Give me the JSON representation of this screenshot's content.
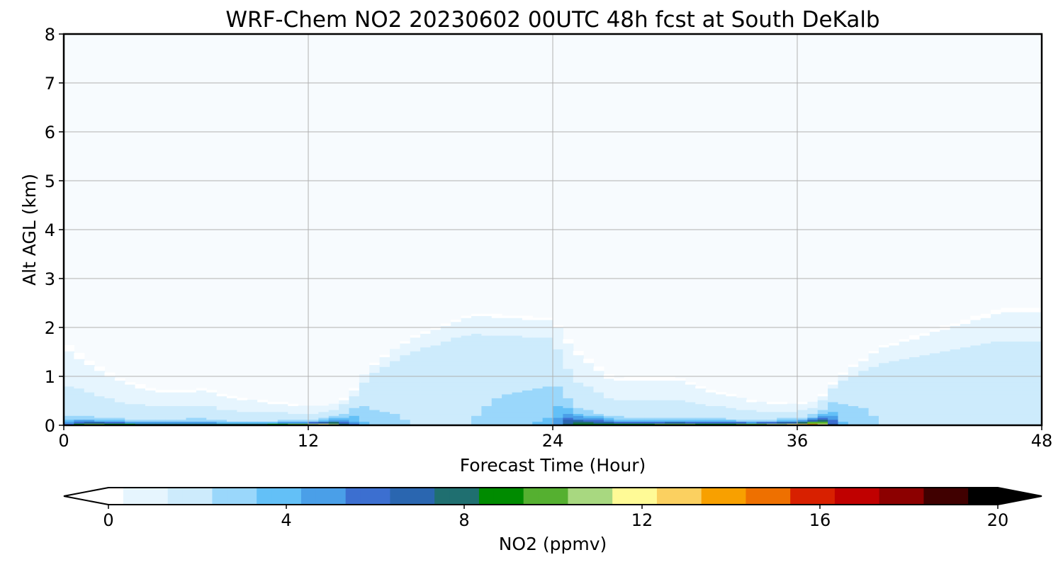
{
  "chart_data": {
    "type": "heatmap",
    "title": "WRF-Chem NO2  20230602 00UTC 48h fcst at South DeKalb",
    "xlabel": "Forecast Time (Hour)",
    "ylabel": "Alt AGL (km)",
    "xlim": [
      0,
      48
    ],
    "ylim": [
      0,
      8
    ],
    "x_ticks": [
      0,
      12,
      24,
      36,
      48
    ],
    "y_ticks": [
      0,
      1,
      2,
      3,
      4,
      5,
      6,
      7,
      8
    ],
    "grid": true,
    "colorbar": {
      "label": "NO2  (ppmv)",
      "range": [
        0,
        20
      ],
      "ticks": [
        0,
        4,
        8,
        12,
        16,
        20
      ],
      "extend": "both",
      "colors": [
        "#ffffff",
        "#e6f5fe",
        "#cdebfc",
        "#9ad7fb",
        "#63c0f7",
        "#4a9fe8",
        "#3c6fd0",
        "#2a66b0",
        "#1f6f70",
        "#008b00",
        "#55b030",
        "#a8d880",
        "#fffa96",
        "#fbd060",
        "#f8a000",
        "#ee7000",
        "#d82000",
        "#c00000",
        "#8c0000",
        "#400000",
        "#000000"
      ]
    },
    "profiles": [
      {
        "hour": 0,
        "top": 1.7,
        "mid": 0.3,
        "peak": 5
      },
      {
        "hour": 1,
        "top": 1.4,
        "mid": 0.25,
        "peak": 12
      },
      {
        "hour": 3,
        "top": 0.9,
        "mid": 0.18,
        "peak": 11
      },
      {
        "hour": 5,
        "top": 0.7,
        "mid": 0.18,
        "peak": 10
      },
      {
        "hour": 7,
        "top": 0.75,
        "mid": 0.2,
        "peak": 9
      },
      {
        "hour": 8,
        "top": 0.6,
        "mid": 0.12,
        "peak": 11
      },
      {
        "hour": 10,
        "top": 0.5,
        "mid": 0.12,
        "peak": 12
      },
      {
        "hour": 12,
        "top": 0.4,
        "mid": 0.15,
        "peak": 14
      },
      {
        "hour": 13,
        "top": 0.4,
        "mid": 0.2,
        "peak": 15
      },
      {
        "hour": 14,
        "top": 0.6,
        "mid": 0.4,
        "peak": 7
      },
      {
        "hour": 15,
        "top": 1.2,
        "mid": 0.9,
        "peak": 3
      },
      {
        "hour": 17,
        "top": 1.8,
        "mid": 1.3,
        "peak": 2.5
      },
      {
        "hour": 20,
        "top": 2.3,
        "mid": 1.6,
        "peak": 2.5
      },
      {
        "hour": 24,
        "top": 2.2,
        "mid": 1.5,
        "peak": 4
      },
      {
        "hour": 25,
        "top": 1.6,
        "mid": 0.5,
        "peak": 10
      },
      {
        "hour": 27,
        "top": 0.95,
        "mid": 0.25,
        "peak": 11
      },
      {
        "hour": 28,
        "top": 1.0,
        "mid": 0.2,
        "peak": 11
      },
      {
        "hour": 30,
        "top": 1.0,
        "mid": 0.22,
        "peak": 12
      },
      {
        "hour": 32,
        "top": 0.7,
        "mid": 0.2,
        "peak": 11
      },
      {
        "hour": 34,
        "top": 0.5,
        "mid": 0.15,
        "peak": 13
      },
      {
        "hour": 36,
        "top": 0.45,
        "mid": 0.2,
        "peak": 15
      },
      {
        "hour": 37,
        "top": 0.5,
        "mid": 0.3,
        "peak": 17
      },
      {
        "hour": 38,
        "top": 1.0,
        "mid": 0.8,
        "peak": 4
      },
      {
        "hour": 40,
        "top": 1.6,
        "mid": 1.0,
        "peak": 2.5
      },
      {
        "hour": 43,
        "top": 2.0,
        "mid": 1.2,
        "peak": 2.2
      },
      {
        "hour": 46,
        "top": 2.4,
        "mid": 1.3,
        "peak": 2.2
      },
      {
        "hour": 48,
        "top": 2.4,
        "mid": 1.3,
        "peak": 2.5
      }
    ]
  }
}
